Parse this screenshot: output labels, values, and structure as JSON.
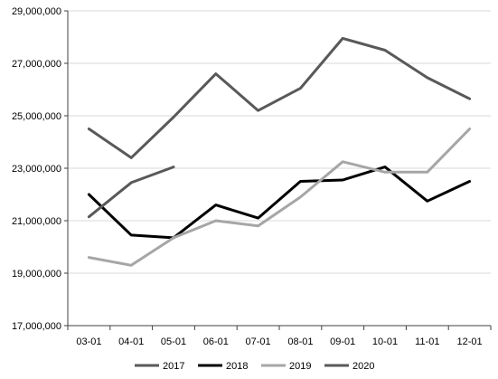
{
  "chart_data": {
    "type": "line",
    "categories": [
      "03-01",
      "04-01",
      "05-01",
      "06-01",
      "07-01",
      "08-01",
      "09-01",
      "10-01",
      "11-01",
      "12-01"
    ],
    "series": [
      {
        "name": "2017",
        "color": "#595959",
        "values": [
          24500000,
          23400000,
          24950000,
          26600000,
          25200000,
          26050000,
          27950000,
          27500000,
          26450000,
          25650000
        ]
      },
      {
        "name": "2018",
        "color": "#000000",
        "values": [
          22000000,
          20450000,
          20350000,
          21600000,
          21100000,
          22500000,
          22550000,
          23050000,
          21750000,
          22500000
        ]
      },
      {
        "name": "2019",
        "color": "#a6a6a6",
        "values": [
          19600000,
          19300000,
          20350000,
          21000000,
          20800000,
          21900000,
          23250000,
          22850000,
          22850000,
          24500000
        ]
      },
      {
        "name": "2020",
        "color": "#595959",
        "values": [
          21150000,
          22450000,
          23050000,
          null,
          null,
          null,
          null,
          null,
          null,
          null
        ]
      }
    ],
    "ylim": [
      17000000,
      29000000
    ],
    "yticks": [
      17000000,
      19000000,
      21000000,
      23000000,
      25000000,
      27000000,
      29000000
    ],
    "ytick_labels": [
      "17,000,000",
      "19,000,000",
      "21,000,000",
      "23,000,000",
      "25,000,000",
      "27,000,000",
      "29,000,000"
    ],
    "grid": true,
    "legend_position": "bottom"
  }
}
